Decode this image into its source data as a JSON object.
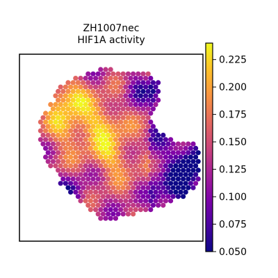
{
  "chart_data": {
    "type": "heatmap",
    "title_lines": [
      "ZH1007nec",
      "HIF1A activity"
    ],
    "colorbar": {
      "colormap": "plasma",
      "range": [
        0.05,
        0.24
      ],
      "ticks": [
        0.05,
        0.075,
        0.1,
        0.125,
        0.15,
        0.175,
        0.2,
        0.225
      ],
      "tick_labels": [
        "0.050",
        "0.075",
        "0.100",
        "0.125",
        "0.150",
        "0.175",
        "0.200",
        "0.225"
      ]
    },
    "grid": false,
    "axes_ticks_visible": false,
    "spots": {
      "description_of_values": "HIF1A activity per spatial spot (hexagonal spot grid)",
      "hot_regions": [
        {
          "row": 6,
          "col": 7,
          "value": 0.225
        },
        {
          "row": 12,
          "col": 14,
          "value": 0.22
        },
        {
          "row": 20,
          "col": 16,
          "value": 0.215
        },
        {
          "row": 14,
          "col": 7,
          "value": 0.205
        }
      ],
      "cool_regions": [
        {
          "row": 21,
          "col": 32,
          "value": 0.06
        },
        {
          "row": 28,
          "col": 30,
          "value": 0.075
        },
        {
          "row": 4,
          "col": 22,
          "value": 0.09
        },
        {
          "row": 29,
          "col": 7,
          "value": 0.07
        }
      ]
    }
  }
}
